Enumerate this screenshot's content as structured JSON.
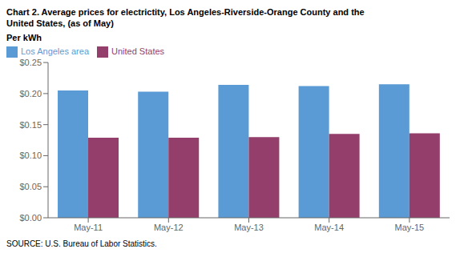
{
  "chart_data": {
    "type": "bar",
    "title": "Chart 2. Average prices for electrictity, Los Angeles-Riverside-Orange County and the\nUnited States, (as of May)",
    "ylabel": "Per kWh",
    "annotations": [
      "SOURCE: U.S. Bureau of Labor Statistics."
    ],
    "categories": [
      "May-11",
      "May-12",
      "May-13",
      "May-14",
      "May-15"
    ],
    "series": [
      {
        "name": "Los Angeles area",
        "color": "#5B9BD5",
        "values": [
          0.205,
          0.203,
          0.214,
          0.212,
          0.215
        ]
      },
      {
        "name": "United States",
        "color": "#943F6B",
        "values": [
          0.129,
          0.129,
          0.13,
          0.135,
          0.136
        ]
      }
    ],
    "ylim": [
      0.0,
      0.25
    ],
    "yticks": [
      {
        "value": 0.0,
        "label": "$0.00"
      },
      {
        "value": 0.05,
        "label": "$0.05"
      },
      {
        "value": 0.1,
        "label": "$0.10"
      },
      {
        "value": 0.15,
        "label": "$0.15"
      },
      {
        "value": 0.2,
        "label": "$0.20"
      },
      {
        "value": 0.25,
        "label": "$0.25"
      }
    ],
    "grid": false,
    "legend": "upper left"
  }
}
